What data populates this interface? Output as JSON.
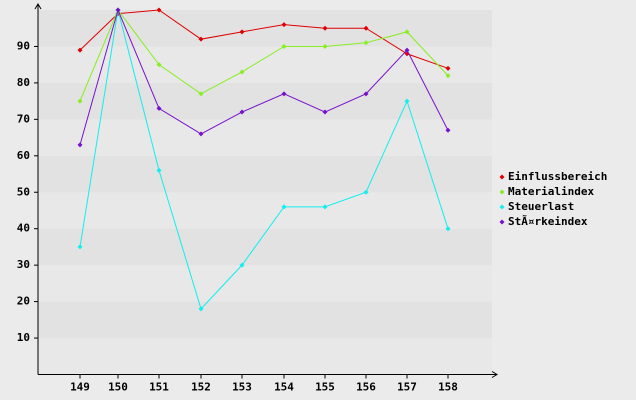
{
  "chart_data": {
    "type": "line",
    "categories": [
      "149",
      "150",
      "151",
      "152",
      "153",
      "154",
      "155",
      "156",
      "157",
      "158"
    ],
    "series": [
      {
        "name": "Einflussbereich",
        "color": "#e00000",
        "values": [
          89,
          99,
          100,
          92,
          94,
          96,
          95,
          95,
          88,
          84
        ]
      },
      {
        "name": "Materialindex",
        "color": "#88ee22",
        "values": [
          75,
          100,
          85,
          77,
          83,
          90,
          90,
          91,
          94,
          82
        ]
      },
      {
        "name": "Steuerlast",
        "color": "#11eeee",
        "values": [
          35,
          100,
          56,
          18,
          30,
          46,
          46,
          50,
          75,
          40
        ]
      },
      {
        "name": "StÃ¤rkeindex",
        "color": "#7711cc",
        "values": [
          63,
          100,
          73,
          66,
          72,
          77,
          72,
          77,
          89,
          67
        ]
      }
    ],
    "ylim": [
      0,
      100
    ],
    "yticks": [
      10,
      20,
      30,
      40,
      50,
      60,
      70,
      80,
      90
    ],
    "grid": true,
    "legend": "right"
  }
}
